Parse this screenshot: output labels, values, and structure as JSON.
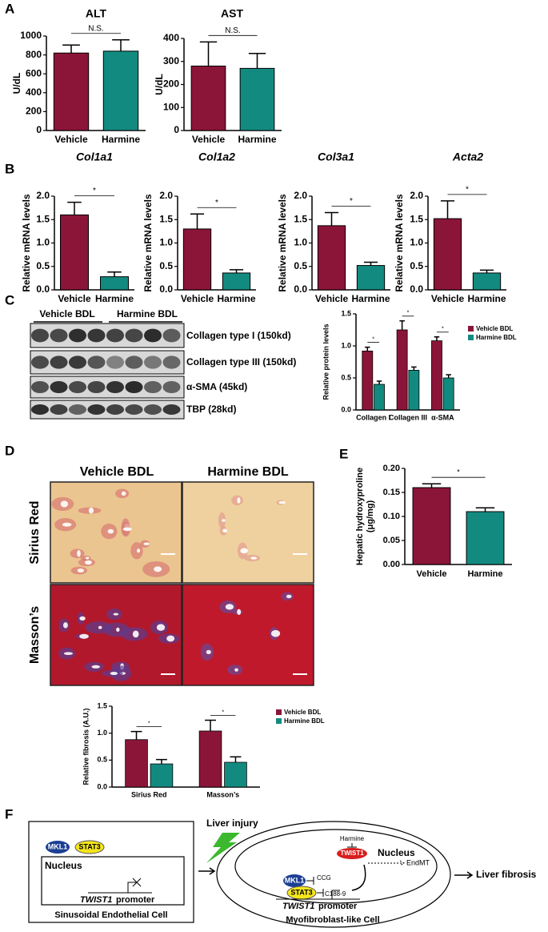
{
  "panel_labels": [
    "A",
    "B",
    "C",
    "D",
    "E",
    "F"
  ],
  "chart_data": [
    {
      "type": "bar",
      "title": "ALT",
      "ylabel": "U/dL",
      "categories": [
        "Vehicle",
        "Harmine"
      ],
      "values": [
        820,
        840
      ],
      "errors": [
        85,
        120
      ],
      "colors": [
        "#8b1538",
        "#138a80"
      ],
      "ylim": [
        0,
        1000
      ],
      "yticks": [
        0,
        200,
        400,
        600,
        800,
        1000
      ],
      "annotation": "N.S."
    },
    {
      "type": "bar",
      "title": "AST",
      "ylabel": "U/dL",
      "categories": [
        "Vehicle",
        "Harmine"
      ],
      "values": [
        280,
        270
      ],
      "errors": [
        105,
        65
      ],
      "colors": [
        "#8b1538",
        "#138a80"
      ],
      "ylim": [
        0,
        400
      ],
      "yticks": [
        0,
        100,
        200,
        300,
        400
      ],
      "annotation": "N.S."
    },
    {
      "type": "bar",
      "title": "Col1a1",
      "ylabel": "Relative mRNA levels",
      "categories": [
        "Vehicle",
        "Harmine"
      ],
      "values": [
        1.6,
        0.28
      ],
      "errors": [
        0.27,
        0.1
      ],
      "colors": [
        "#8b1538",
        "#138a80"
      ],
      "ylim": [
        0,
        2
      ],
      "yticks": [
        {
          "value": 0,
          "label": "0.0"
        },
        0.5,
        {
          "value": 1,
          "label": "1.0"
        },
        1.5,
        {
          "value": 2,
          "label": "2.0"
        }
      ],
      "annotation": "*"
    },
    {
      "type": "bar",
      "title": "Col1a2",
      "ylabel": "Relative mRNA levels",
      "categories": [
        "Vehicle",
        "Harmine"
      ],
      "values": [
        1.3,
        0.36
      ],
      "errors": [
        0.32,
        0.07
      ],
      "colors": [
        "#8b1538",
        "#138a80"
      ],
      "ylim": [
        0,
        2
      ],
      "yticks": [
        {
          "value": 0,
          "label": "0.0"
        },
        0.5,
        {
          "value": 1,
          "label": "1.0"
        },
        1.5,
        {
          "value": 2,
          "label": "2.0"
        }
      ],
      "annotation": "*"
    },
    {
      "type": "bar",
      "title": "Col3a1",
      "ylabel": "Relative mRNA levels",
      "categories": [
        "Vehicle",
        "Harmine"
      ],
      "values": [
        1.37,
        0.52
      ],
      "errors": [
        0.28,
        0.07
      ],
      "colors": [
        "#8b1538",
        "#138a80"
      ],
      "ylim": [
        0,
        2
      ],
      "yticks": [
        {
          "value": 0,
          "label": "0.0"
        },
        0.5,
        {
          "value": 1,
          "label": "1.0"
        },
        1.5,
        {
          "value": 2,
          "label": "2.0"
        }
      ],
      "annotation": "*"
    },
    {
      "type": "bar",
      "title": "Acta2",
      "ylabel": "Relative mRNA levels",
      "categories": [
        "Vehicle",
        "Harmine"
      ],
      "values": [
        1.52,
        0.36
      ],
      "errors": [
        0.38,
        0.06
      ],
      "colors": [
        "#8b1538",
        "#138a80"
      ],
      "ylim": [
        0,
        2
      ],
      "yticks": [
        {
          "value": 0,
          "label": "0.0"
        },
        0.5,
        {
          "value": 1,
          "label": "1.0"
        },
        1.5,
        {
          "value": 2,
          "label": "2.0"
        }
      ],
      "annotation": "*"
    },
    {
      "type": "grouped-bar",
      "ylabel": "Relative protein levels",
      "categories": [
        "Collagen I",
        "Collagen III",
        "α-SMA"
      ],
      "series": [
        {
          "name": "Vehicle BDL",
          "color": "#8b1538",
          "values": [
            0.92,
            1.25,
            1.08
          ],
          "errors": [
            0.06,
            0.14,
            0.06
          ]
        },
        {
          "name": "Harmine BDL",
          "color": "#138a80",
          "values": [
            0.4,
            0.62,
            0.5
          ],
          "errors": [
            0.05,
            0.05,
            0.05
          ]
        }
      ],
      "ylim": [
        0,
        1.5
      ],
      "yticks": [
        {
          "value": 0,
          "label": "0.0"
        },
        0.5,
        {
          "value": 1,
          "label": "1.0"
        },
        1.5
      ],
      "annotations": [
        "*",
        "*",
        "*"
      ],
      "legend": "upper right"
    },
    {
      "type": "grouped-bar",
      "ylabel": "Relative fibrosis (A.U.)",
      "categories": [
        "Sirius Red",
        "Masson’s"
      ],
      "series": [
        {
          "name": "Vehicle BDL",
          "color": "#8b1538",
          "values": [
            0.88,
            1.04
          ],
          "errors": [
            0.15,
            0.2
          ]
        },
        {
          "name": "Harmine BDL",
          "color": "#138a80",
          "values": [
            0.43,
            0.46
          ],
          "errors": [
            0.08,
            0.1
          ]
        }
      ],
      "ylim": [
        0,
        1.5
      ],
      "yticks": [
        {
          "value": 0,
          "label": "0.0"
        },
        0.5,
        {
          "value": 1,
          "label": "1.0"
        },
        1.5
      ],
      "annotations": [
        "*",
        "*"
      ],
      "legend": "upper right"
    },
    {
      "type": "bar",
      "ylabel": [
        "Hepatic hydroxyproline",
        "(μg/mg)"
      ],
      "categories": [
        "Vehicle",
        "Harmine"
      ],
      "values": [
        0.16,
        0.11
      ],
      "errors": [
        0.008,
        0.008
      ],
      "colors": [
        "#8b1538",
        "#138a80"
      ],
      "ylim": [
        0,
        0.2
      ],
      "yticks": [
        {
          "value": 0,
          "label": "0.00"
        },
        0.05,
        {
          "value": 0.1,
          "label": "0.10"
        },
        0.15,
        {
          "value": 0.2,
          "label": "0.20"
        }
      ],
      "annotation": "*"
    }
  ],
  "blot": {
    "groups": [
      "Vehicle BDL",
      "Harmine BDL"
    ],
    "rows": [
      "Collagen type I (150kd)",
      "Collagen type III (150kd)",
      "α-SMA (45kd)",
      "TBP (28kd)"
    ]
  },
  "histology": {
    "columns": [
      "Vehicle BDL",
      "Harmine BDL"
    ],
    "rows": [
      "Sirius Red",
      "Masson’s"
    ]
  },
  "diagram": {
    "liver_injury": "Liver injury",
    "left_cell": {
      "mkl1": "MKL1",
      "stat3": "STAT3",
      "nucleus": "Nucleus",
      "gene": "TWIST1",
      "promoter": "promoter",
      "label": "Sinusoidal Endothelial Cell"
    },
    "right_cell": {
      "harmine": "Harmine",
      "twist1": "TWIST1",
      "nucleus": "Nucleus",
      "endmt": "EndMT",
      "mkl1": "MKL1",
      "ccg": "CCG",
      "stat3": "STAT3",
      "c188": "C188-9",
      "gene": "TWIST1",
      "promoter": "promoter",
      "label": "Myofibroblast-like Cell"
    },
    "outcome": "Liver fibrosis"
  }
}
